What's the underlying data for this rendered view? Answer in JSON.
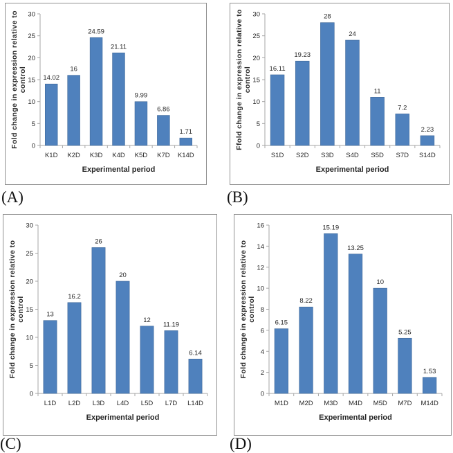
{
  "colors": {
    "bar_fill": "#4F81BD",
    "bar_stroke": "#3F6899",
    "axis_line": "#A6A6A6",
    "text": "#262626",
    "panel_border": "#8f8f8f",
    "background": "#ffffff"
  },
  "chart_data": [
    {
      "type": "bar",
      "panel_label": "(A)",
      "categories": [
        "K1D",
        "K2D",
        "K3D",
        "K4D",
        "K5D",
        "K7D",
        "K14D"
      ],
      "values": [
        14.02,
        16,
        24.59,
        21.11,
        9.99,
        6.86,
        1.71
      ],
      "title": "",
      "xlabel": "Experimental period",
      "ylabel": "Fold change in expression relative to control",
      "ylabel_lines": [
        "Fold change in expression relative to",
        "control"
      ],
      "ylim": [
        0,
        30
      ],
      "yticks": [
        0,
        5,
        10,
        15,
        20,
        25,
        30
      ],
      "grid": false,
      "legend": "none"
    },
    {
      "type": "bar",
      "panel_label": "(B)",
      "categories": [
        "S1D",
        "S2D",
        "S3D",
        "S4D",
        "S5D",
        "S7D",
        "S14D"
      ],
      "values": [
        16.11,
        19.23,
        28,
        24,
        11,
        7.2,
        2.23
      ],
      "title": "",
      "xlabel": "Experimental period",
      "ylabel": "Ffold change in expression relative to control",
      "ylabel_lines": [
        "Ffold change in expression relative to",
        "control"
      ],
      "ylim": [
        0,
        30
      ],
      "yticks": [
        0,
        5,
        10,
        15,
        20,
        25,
        30
      ],
      "grid": false,
      "legend": "none"
    },
    {
      "type": "bar",
      "panel_label": "(C)",
      "categories": [
        "L1D",
        "L2D",
        "L3D",
        "L4D",
        "L5D",
        "L7D",
        "L14D"
      ],
      "values": [
        13,
        16.2,
        26,
        20,
        12,
        11.19,
        6.14
      ],
      "title": "",
      "xlabel": "Experimental period",
      "ylabel": "Fold change in expression relative to control",
      "ylabel_lines": [
        "Fold change in expression relative to",
        "control"
      ],
      "ylim": [
        0,
        30
      ],
      "yticks": [
        0,
        5,
        10,
        15,
        20,
        25,
        30
      ],
      "grid": false,
      "legend": "none"
    },
    {
      "type": "bar",
      "panel_label": "(D)",
      "categories": [
        "M1D",
        "M2D",
        "M3D",
        "M4D",
        "M5D",
        "M7D",
        "M14D"
      ],
      "values": [
        6.15,
        8.22,
        15.19,
        13.25,
        10,
        5.25,
        1.53
      ],
      "title": "",
      "xlabel": "Experimental period",
      "ylabel": "Fold change in expression relative to control",
      "ylabel_lines": [
        "Fold change in expression relative to",
        "control"
      ],
      "ylim": [
        0,
        16
      ],
      "yticks": [
        0,
        2,
        4,
        6,
        8,
        10,
        12,
        14,
        16
      ],
      "grid": false,
      "legend": "none"
    }
  ]
}
